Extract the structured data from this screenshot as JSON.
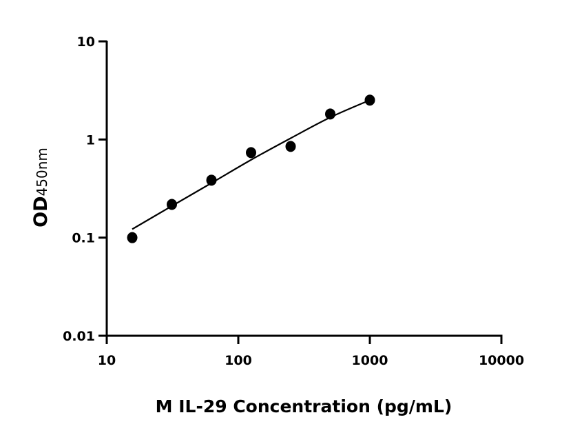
{
  "chart_data": {
    "type": "scatter",
    "title": "",
    "xlabel": "M IL-29 Concentration (pg/mL)",
    "ylabel_main": "OD",
    "ylabel_sub": "450nm",
    "x_scale": "log",
    "y_scale": "log",
    "xlim": [
      10,
      10000
    ],
    "ylim": [
      0.01,
      10
    ],
    "x_ticks": [
      "10",
      "100",
      "1000",
      "10000"
    ],
    "y_ticks": [
      "0.01",
      "0.1",
      "1",
      "10"
    ],
    "grid": false,
    "legend": "none",
    "points": {
      "x": [
        15.625,
        31.25,
        62.5,
        125,
        250,
        500,
        1000
      ],
      "y": [
        0.1,
        0.218,
        0.385,
        0.735,
        0.85,
        1.82,
        2.52
      ]
    },
    "fit_curve": {
      "x": [
        15.625,
        31.25,
        62.5,
        125,
        250,
        500,
        1000
      ],
      "y": [
        0.122,
        0.21,
        0.36,
        0.62,
        1.03,
        1.68,
        2.52
      ]
    },
    "colors": {
      "points": "#000000",
      "curve": "#000000",
      "axes": "#000000"
    }
  }
}
